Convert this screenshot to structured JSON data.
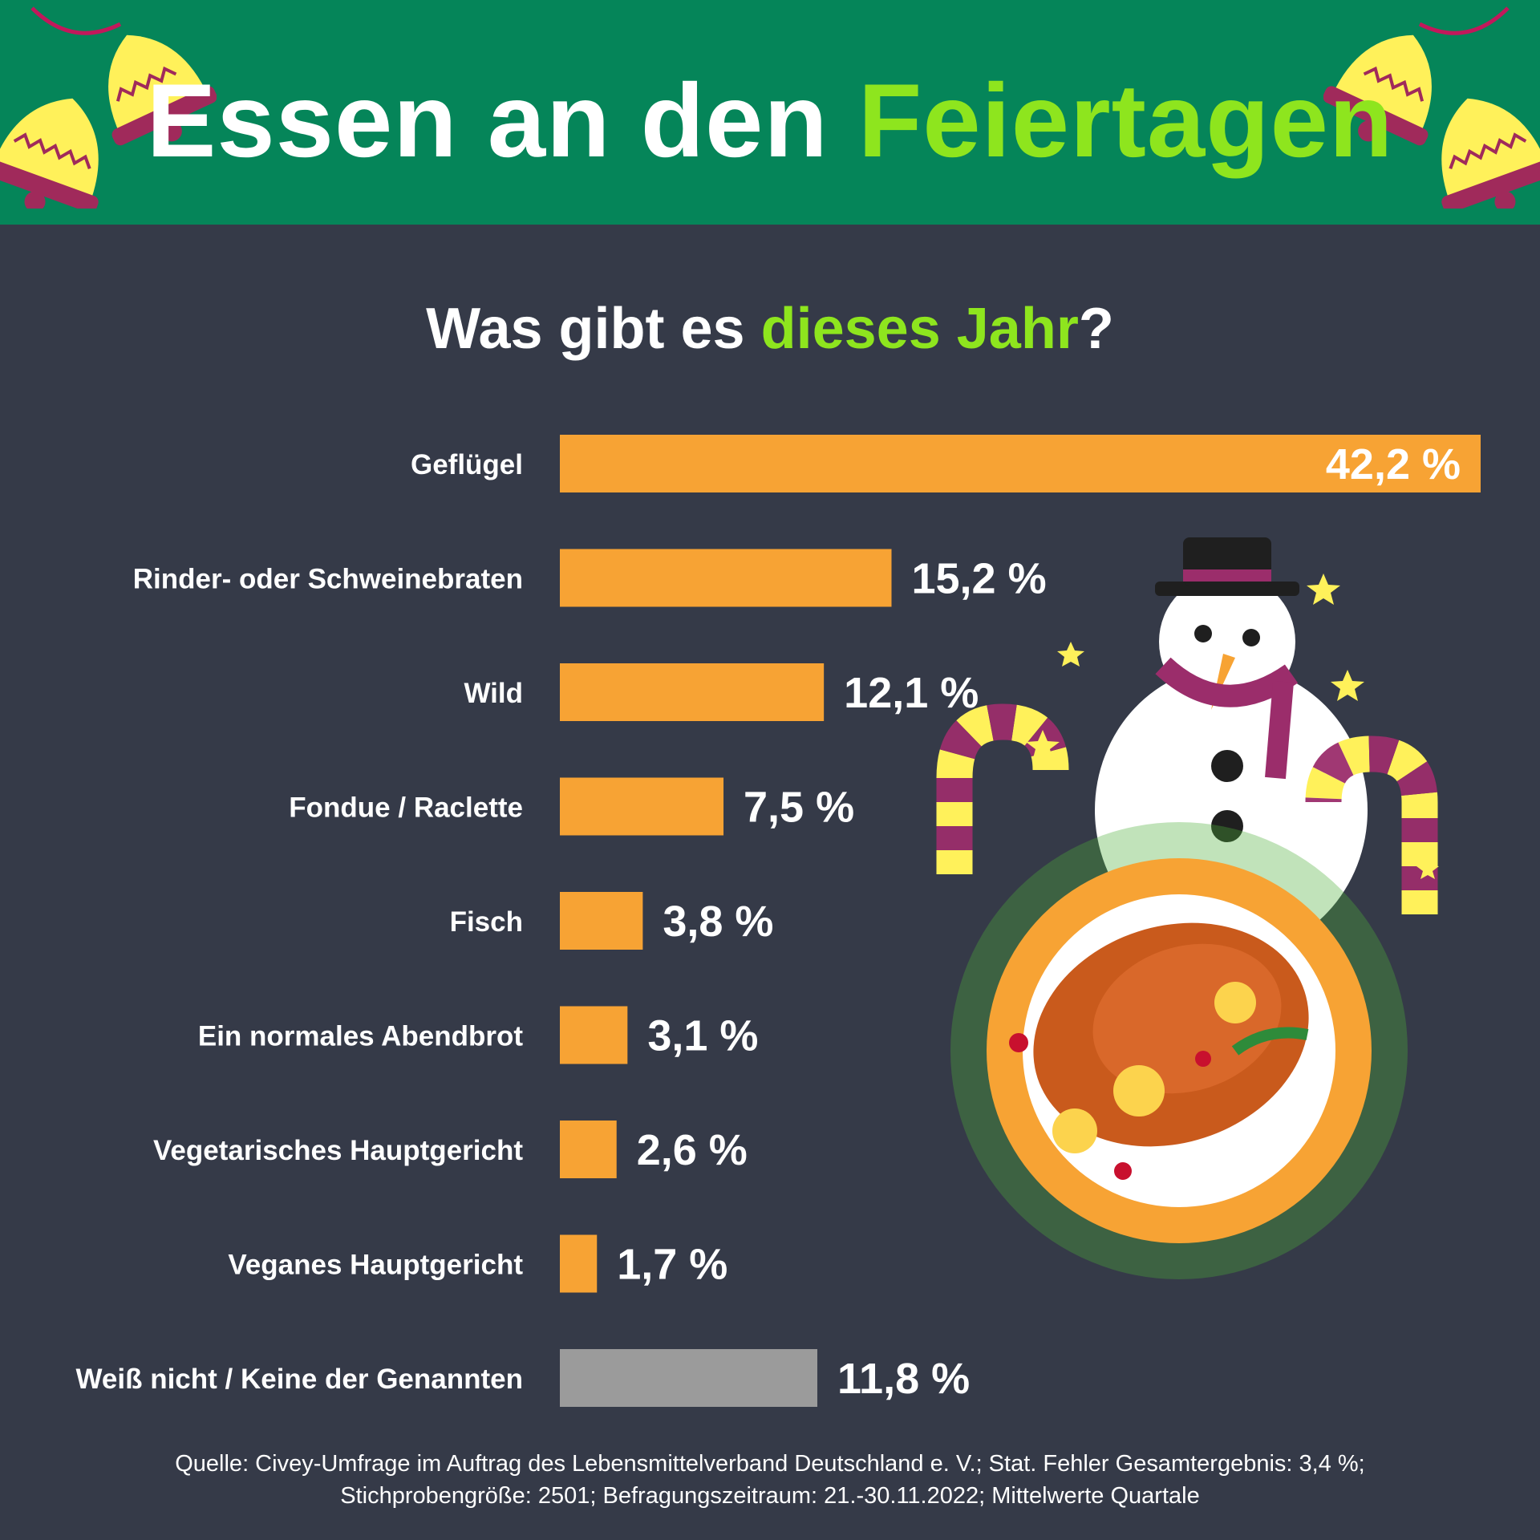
{
  "header": {
    "title_part1": "Essen an den",
    "title_part2": "Feiertagen",
    "background_color": "#058559",
    "highlight_color": "#8ee51e"
  },
  "subtitle": {
    "part1": "Was gibt es",
    "part2": "dieses Jahr",
    "part3": "?"
  },
  "chart_data": {
    "type": "bar",
    "orientation": "horizontal",
    "categories": [
      "Geflügel",
      "Rinder- oder Schweinebraten",
      "Wild",
      "Fondue / Raclette",
      "Fisch",
      "Ein normales Abendbrot",
      "Vegetarisches Hauptgericht",
      "Veganes Hauptgericht",
      "Weiß nicht / Keine der Genannten"
    ],
    "values": [
      42.2,
      15.2,
      12.1,
      7.5,
      3.8,
      3.1,
      2.6,
      1.7,
      11.8
    ],
    "value_labels": [
      "42,2 %",
      "15,2 %",
      "12,1 %",
      "7,5 %",
      "3,8 %",
      "3,1 %",
      "2,6 %",
      "1,7 %",
      "11,8 %"
    ],
    "bar_colors": [
      "#f7a334",
      "#f7a334",
      "#f7a334",
      "#f7a334",
      "#f7a334",
      "#f7a334",
      "#f7a334",
      "#f7a334",
      "#9b9b9b"
    ],
    "xlim": [
      0,
      42.2
    ],
    "grid": false,
    "legend": "none"
  },
  "source": {
    "line1": "Quelle: Civey-Umfrage im Auftrag des Lebensmittelverband Deutschland e. V.; Stat. Fehler Gesamtergebnis: 3,4 %;",
    "line2": "Stichprobengröße: 2501; Befragungszeitraum: 21.-30.11.2022; Mittelwerte Quartale"
  },
  "illustration": {
    "icons": [
      "christmas-bells-icon",
      "snowman-icon",
      "candy-cane-icon",
      "roast-turkey-icon",
      "star-icon"
    ]
  }
}
